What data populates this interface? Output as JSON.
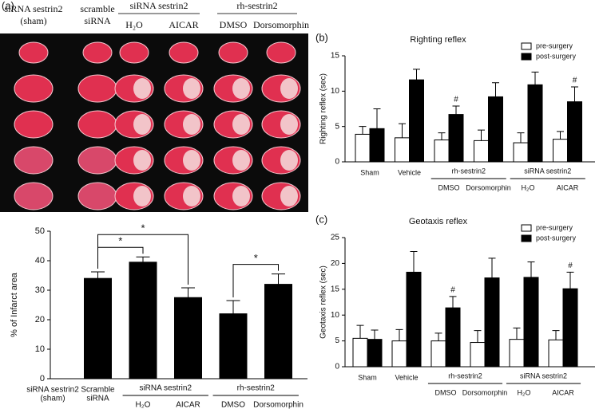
{
  "photo": {
    "panel_label": "(a)",
    "columns": [
      [
        "siRNA sestrin2",
        "(sham)"
      ],
      [
        "scramble",
        "siRNA"
      ],
      [
        "H₂O"
      ],
      [
        "AICAR"
      ],
      [
        "DMSO"
      ],
      [
        "Dorsomorphin"
      ]
    ],
    "groups": [
      {
        "label": "siRNA sestrin2",
        "span": [
          2,
          3
        ]
      },
      {
        "label": "rh-sestrin2",
        "span": [
          4,
          5
        ]
      }
    ]
  },
  "chart_data": [
    {
      "type": "bar",
      "ylabel": "% of Infarct area",
      "categories": [
        [
          "siRNA sestrin2",
          "(sham)"
        ],
        [
          "Scramble",
          "siRNA"
        ],
        [
          "H₂O"
        ],
        [
          "AICAR"
        ],
        [
          "DMSO"
        ],
        [
          "Dorsomorphin"
        ]
      ],
      "groups": [
        {
          "label": "siRNA sestrin2",
          "span": [
            2,
            3
          ]
        },
        {
          "label": "rh-sestrin2",
          "span": [
            4,
            5
          ]
        }
      ],
      "values": [
        0,
        34,
        39.5,
        27.5,
        22,
        32
      ],
      "errors": [
        null,
        2.2,
        1.8,
        3.3,
        4.5,
        3.5
      ],
      "color": "#000000",
      "ylim": [
        0,
        50
      ],
      "yticks": [
        0,
        10,
        20,
        30,
        40,
        50
      ],
      "brackets": [
        {
          "from": 1,
          "to": 2,
          "label": "*"
        },
        {
          "from": 1,
          "to": 3,
          "label": "*"
        },
        {
          "from": 4,
          "to": 5,
          "label": "*"
        }
      ]
    },
    {
      "type": "grouped_bar",
      "panel_label": "(b)",
      "title": "Righting reflex",
      "ylabel": "Righting reflex (sec)",
      "categories": [
        [
          "Sham"
        ],
        [
          "Vehicle"
        ],
        [
          "DMSO"
        ],
        [
          "Dorsomorphin"
        ],
        [
          "H₂O"
        ],
        [
          "AICAR"
        ]
      ],
      "groups": [
        {
          "label": "rh-sestrin2",
          "span": [
            2,
            3
          ]
        },
        {
          "label": "siRNA sestrin2",
          "span": [
            4,
            5
          ]
        }
      ],
      "series": [
        {
          "name": "pre-surgery",
          "color": "#ffffff",
          "values": [
            3.9,
            3.4,
            3.1,
            3.0,
            2.7,
            3.2
          ],
          "errors": [
            1.1,
            2.0,
            1.0,
            1.5,
            1.4,
            1.1
          ]
        },
        {
          "name": "post-surgery",
          "color": "#000000",
          "values": [
            4.7,
            11.6,
            6.7,
            9.2,
            10.9,
            8.5
          ],
          "errors": [
            2.8,
            1.5,
            1.2,
            2.0,
            1.8,
            2.1
          ],
          "annotations": [
            null,
            null,
            "#",
            null,
            null,
            "#"
          ]
        }
      ],
      "ylim": [
        0,
        15
      ],
      "yticks": [
        0,
        5,
        10,
        15
      ],
      "legend": "top-right"
    },
    {
      "type": "grouped_bar",
      "panel_label": "(c)",
      "title": "Geotaxis reflex",
      "ylabel": "Geotaxis reflex (sec)",
      "categories": [
        [
          "Sham"
        ],
        [
          "Vehicle"
        ],
        [
          "DMSO"
        ],
        [
          "Dorsomorphin"
        ],
        [
          "H₂O"
        ],
        [
          "AICAR"
        ]
      ],
      "groups": [
        {
          "label": "rh-sestrin2",
          "span": [
            2,
            3
          ]
        },
        {
          "label": "siRNA sestrin2",
          "span": [
            4,
            5
          ]
        }
      ],
      "series": [
        {
          "name": "pre-surgery",
          "color": "#ffffff",
          "values": [
            5.5,
            5.0,
            5.0,
            4.7,
            5.3,
            5.2
          ],
          "errors": [
            2.5,
            2.2,
            1.5,
            2.3,
            2.2,
            1.8
          ]
        },
        {
          "name": "post-surgery",
          "color": "#000000",
          "values": [
            5.3,
            18.3,
            11.4,
            17.2,
            17.3,
            15.1
          ],
          "errors": [
            1.8,
            4.0,
            2.2,
            3.8,
            3.0,
            3.2
          ],
          "annotations": [
            null,
            null,
            "#",
            null,
            null,
            "#"
          ]
        }
      ],
      "ylim": [
        0,
        25
      ],
      "yticks": [
        0,
        5,
        10,
        15,
        20,
        25
      ],
      "legend": "top-right"
    }
  ]
}
